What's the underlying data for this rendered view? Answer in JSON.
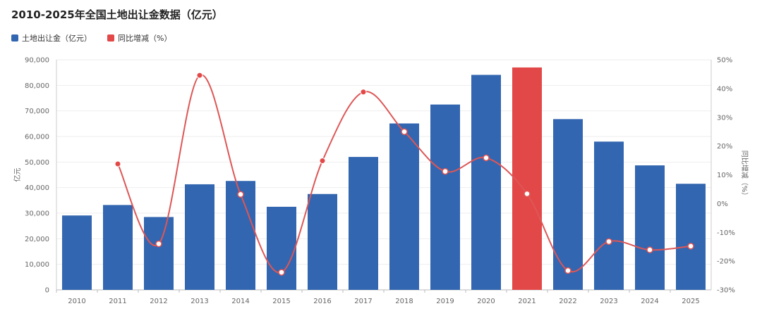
{
  "title": "2010-2025年全国土地出让金数据（亿元）",
  "legend": {
    "bar_label": "土地出让金（亿元）",
    "line_label": "同比增减（%）"
  },
  "colors": {
    "bar": "#3366b0",
    "highlight": "#e34848",
    "line": "#de5656",
    "grid": "#eeeeee"
  },
  "chart_data": {
    "type": "bar",
    "categories": [
      "2010",
      "2011",
      "2012",
      "2013",
      "2014",
      "2015",
      "2016",
      "2017",
      "2018",
      "2019",
      "2020",
      "2021",
      "2022",
      "2023",
      "2024",
      "2025"
    ],
    "series": [
      {
        "name": "土地出让金（亿元）",
        "type": "bar",
        "axis": "left",
        "values": [
          29100,
          33200,
          28500,
          41300,
          42600,
          32500,
          37500,
          52000,
          65100,
          72500,
          84100,
          87000,
          66800,
          58000,
          48700,
          41500
        ]
      },
      {
        "name": "同比增减（%）",
        "type": "line",
        "axis": "right",
        "values": [
          null,
          13.8,
          -14.0,
          44.6,
          3.2,
          -23.9,
          14.9,
          38.8,
          25.0,
          11.2,
          15.9,
          3.4,
          -23.3,
          -13.2,
          -16.1,
          -14.8
        ]
      }
    ],
    "highlight_index": 11,
    "ylabel": "亿元",
    "y2label": "同比增减（%）",
    "ylim": [
      0,
      90000
    ],
    "y2lim": [
      -30,
      50
    ],
    "yticks": [
      "0",
      "10,000",
      "20,000",
      "30,000",
      "40,000",
      "50,000",
      "60,000",
      "70,000",
      "80,000",
      "90,000"
    ],
    "y2ticks": [
      "-30%",
      "-20%",
      "-10%",
      "0%",
      "10%",
      "20%",
      "30%",
      "40%",
      "50%"
    ],
    "grid": true,
    "legend_position": "top-left"
  }
}
